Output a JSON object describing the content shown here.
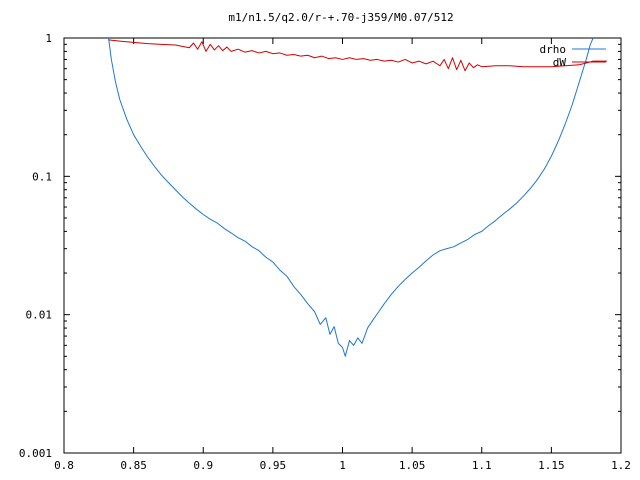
{
  "chart_data": {
    "type": "line",
    "title": "m1/n1.5/q2.0/r-+.70-j359/M0.07/512",
    "xlabel": "",
    "ylabel": "",
    "xlim": [
      0.8,
      1.2
    ],
    "ylim": [
      0.001,
      1
    ],
    "yscale": "log",
    "grid": false,
    "legend_position": "top-right",
    "x_ticks": [
      0.8,
      0.85,
      0.9,
      0.95,
      1,
      1.05,
      1.1,
      1.15,
      1.2
    ],
    "x_tick_labels": [
      "0.8",
      "0.85",
      "0.9",
      "0.95",
      "1",
      "1.05",
      "1.1",
      "1.15",
      "1.2"
    ],
    "y_ticks": [
      0.001,
      0.01,
      0.1,
      1
    ],
    "y_tick_labels": [
      "0.001",
      "0.01",
      "0.1",
      "1"
    ],
    "series": [
      {
        "name": "drho",
        "color": "#1f77d4",
        "points": [
          [
            0.832,
            1.0
          ],
          [
            0.834,
            0.7
          ],
          [
            0.837,
            0.48
          ],
          [
            0.84,
            0.36
          ],
          [
            0.845,
            0.26
          ],
          [
            0.85,
            0.2
          ],
          [
            0.855,
            0.165
          ],
          [
            0.86,
            0.138
          ],
          [
            0.865,
            0.118
          ],
          [
            0.87,
            0.102
          ],
          [
            0.875,
            0.09
          ],
          [
            0.88,
            0.08
          ],
          [
            0.885,
            0.071
          ],
          [
            0.89,
            0.064
          ],
          [
            0.895,
            0.058
          ],
          [
            0.9,
            0.053
          ],
          [
            0.905,
            0.049
          ],
          [
            0.91,
            0.046
          ],
          [
            0.915,
            0.042
          ],
          [
            0.92,
            0.039
          ],
          [
            0.925,
            0.036
          ],
          [
            0.93,
            0.034
          ],
          [
            0.935,
            0.031
          ],
          [
            0.94,
            0.029
          ],
          [
            0.945,
            0.026
          ],
          [
            0.95,
            0.024
          ],
          [
            0.955,
            0.021
          ],
          [
            0.96,
            0.019
          ],
          [
            0.965,
            0.016
          ],
          [
            0.97,
            0.014
          ],
          [
            0.975,
            0.012
          ],
          [
            0.98,
            0.0105
          ],
          [
            0.984,
            0.0085
          ],
          [
            0.988,
            0.0095
          ],
          [
            0.991,
            0.0072
          ],
          [
            0.994,
            0.0082
          ],
          [
            0.997,
            0.0062
          ],
          [
            1.0,
            0.0058
          ],
          [
            1.002,
            0.005
          ],
          [
            1.005,
            0.0065
          ],
          [
            1.008,
            0.006
          ],
          [
            1.011,
            0.0068
          ],
          [
            1.014,
            0.0062
          ],
          [
            1.018,
            0.008
          ],
          [
            1.022,
            0.0092
          ],
          [
            1.026,
            0.0105
          ],
          [
            1.03,
            0.012
          ],
          [
            1.035,
            0.014
          ],
          [
            1.04,
            0.016
          ],
          [
            1.045,
            0.018
          ],
          [
            1.05,
            0.02
          ],
          [
            1.055,
            0.022
          ],
          [
            1.06,
            0.0245
          ],
          [
            1.065,
            0.027
          ],
          [
            1.07,
            0.029
          ],
          [
            1.075,
            0.03
          ],
          [
            1.08,
            0.031
          ],
          [
            1.085,
            0.033
          ],
          [
            1.09,
            0.035
          ],
          [
            1.095,
            0.038
          ],
          [
            1.1,
            0.04
          ],
          [
            1.105,
            0.044
          ],
          [
            1.11,
            0.048
          ],
          [
            1.115,
            0.053
          ],
          [
            1.12,
            0.058
          ],
          [
            1.125,
            0.064
          ],
          [
            1.13,
            0.072
          ],
          [
            1.135,
            0.082
          ],
          [
            1.14,
            0.095
          ],
          [
            1.145,
            0.113
          ],
          [
            1.15,
            0.14
          ],
          [
            1.155,
            0.18
          ],
          [
            1.16,
            0.24
          ],
          [
            1.165,
            0.33
          ],
          [
            1.17,
            0.48
          ],
          [
            1.175,
            0.7
          ],
          [
            1.178,
            0.9
          ],
          [
            1.18,
            1.0
          ]
        ]
      },
      {
        "name": "dW",
        "color": "#d40000",
        "points": [
          [
            0.832,
            0.97
          ],
          [
            0.84,
            0.95
          ],
          [
            0.85,
            0.93
          ],
          [
            0.86,
            0.91
          ],
          [
            0.87,
            0.9
          ],
          [
            0.88,
            0.89
          ],
          [
            0.885,
            0.87
          ],
          [
            0.89,
            0.85
          ],
          [
            0.893,
            0.92
          ],
          [
            0.896,
            0.83
          ],
          [
            0.899,
            0.94
          ],
          [
            0.902,
            0.8
          ],
          [
            0.905,
            0.9
          ],
          [
            0.908,
            0.82
          ],
          [
            0.911,
            0.88
          ],
          [
            0.914,
            0.81
          ],
          [
            0.917,
            0.86
          ],
          [
            0.92,
            0.8
          ],
          [
            0.925,
            0.83
          ],
          [
            0.93,
            0.79
          ],
          [
            0.935,
            0.81
          ],
          [
            0.94,
            0.78
          ],
          [
            0.945,
            0.8
          ],
          [
            0.95,
            0.77
          ],
          [
            0.955,
            0.78
          ],
          [
            0.96,
            0.75
          ],
          [
            0.965,
            0.76
          ],
          [
            0.97,
            0.74
          ],
          [
            0.975,
            0.75
          ],
          [
            0.98,
            0.72
          ],
          [
            0.985,
            0.74
          ],
          [
            0.99,
            0.71
          ],
          [
            0.995,
            0.72
          ],
          [
            1.0,
            0.7
          ],
          [
            1.005,
            0.72
          ],
          [
            1.01,
            0.7
          ],
          [
            1.015,
            0.71
          ],
          [
            1.02,
            0.69
          ],
          [
            1.025,
            0.7
          ],
          [
            1.03,
            0.68
          ],
          [
            1.035,
            0.69
          ],
          [
            1.04,
            0.67
          ],
          [
            1.045,
            0.7
          ],
          [
            1.05,
            0.66
          ],
          [
            1.055,
            0.68
          ],
          [
            1.06,
            0.65
          ],
          [
            1.065,
            0.68
          ],
          [
            1.07,
            0.63
          ],
          [
            1.073,
            0.7
          ],
          [
            1.076,
            0.6
          ],
          [
            1.079,
            0.72
          ],
          [
            1.082,
            0.59
          ],
          [
            1.085,
            0.69
          ],
          [
            1.088,
            0.58
          ],
          [
            1.091,
            0.66
          ],
          [
            1.094,
            0.61
          ],
          [
            1.097,
            0.64
          ],
          [
            1.1,
            0.62
          ],
          [
            1.11,
            0.63
          ],
          [
            1.12,
            0.63
          ],
          [
            1.13,
            0.62
          ],
          [
            1.14,
            0.62
          ],
          [
            1.15,
            0.62
          ],
          [
            1.16,
            0.63
          ],
          [
            1.17,
            0.64
          ],
          [
            1.175,
            0.66
          ],
          [
            1.18,
            0.68
          ],
          [
            1.19,
            0.68
          ]
        ]
      }
    ]
  }
}
